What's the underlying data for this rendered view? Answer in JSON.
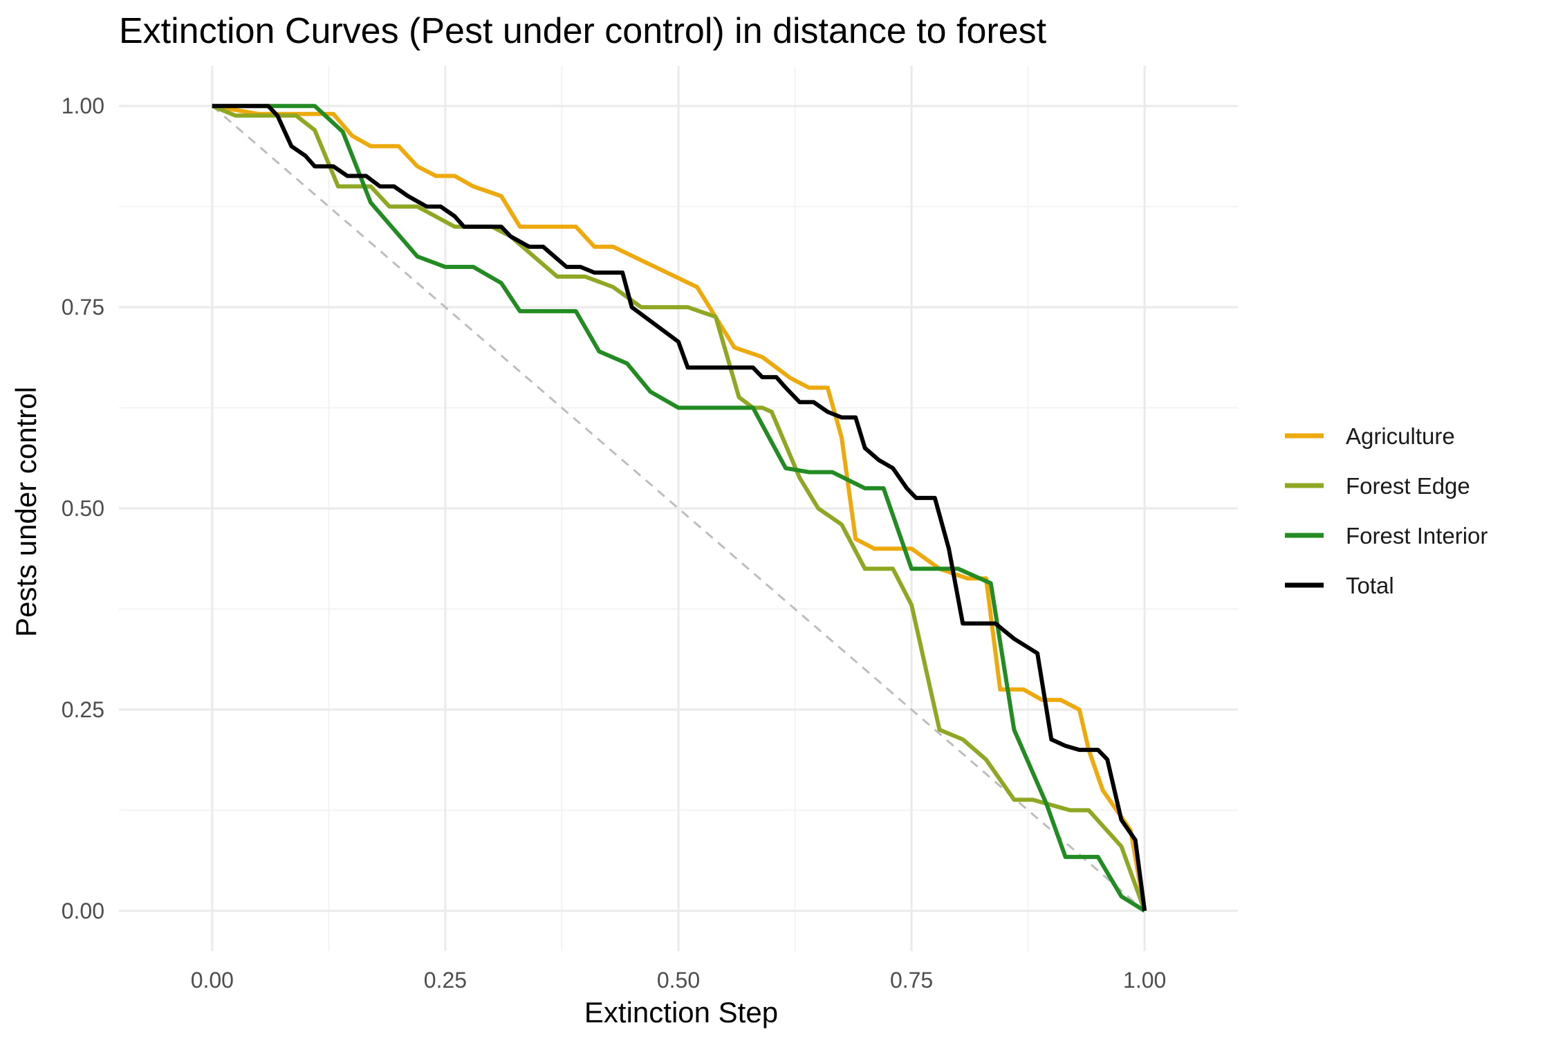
{
  "chart_data": {
    "type": "line",
    "title": "Extinction Curves (Pest under control) in distance to forest",
    "xlabel": "Extinction Step",
    "ylabel": "Pests under control",
    "xlim": [
      -0.1,
      1.1
    ],
    "ylim": [
      -0.05,
      1.05
    ],
    "x_ticks": [
      0,
      0.25,
      0.5,
      0.75,
      1
    ],
    "x_tick_labels": [
      "0.00",
      "0.25",
      "0.50",
      "0.75",
      "1.00"
    ],
    "y_ticks": [
      0,
      0.25,
      0.5,
      0.75,
      1
    ],
    "y_tick_labels": [
      "0.00",
      "0.25",
      "0.50",
      "0.75",
      "1.00"
    ],
    "grid": true,
    "legend_position": "right",
    "reference_line": {
      "x": [
        0,
        1
      ],
      "y": [
        1,
        0
      ],
      "style": "dashed",
      "color": "#bdbdbd"
    },
    "series": [
      {
        "name": "Agriculture",
        "color": "#EEA90C",
        "x": [
          0,
          0.05,
          0.13,
          0.15,
          0.17,
          0.2,
          0.22,
          0.24,
          0.26,
          0.28,
          0.31,
          0.33,
          0.39,
          0.41,
          0.43,
          0.52,
          0.56,
          0.59,
          0.62,
          0.64,
          0.66,
          0.675,
          0.69,
          0.71,
          0.75,
          0.78,
          0.81,
          0.83,
          0.845,
          0.87,
          0.89,
          0.91,
          0.93,
          0.94,
          0.955,
          0.97,
          0.985,
          1
        ],
        "y": [
          1,
          0.99,
          0.99,
          0.963,
          0.95,
          0.95,
          0.925,
          0.913,
          0.913,
          0.9,
          0.888,
          0.85,
          0.85,
          0.825,
          0.825,
          0.775,
          0.7,
          0.688,
          0.662,
          0.65,
          0.65,
          0.588,
          0.462,
          0.45,
          0.45,
          0.425,
          0.413,
          0.413,
          0.275,
          0.275,
          0.262,
          0.262,
          0.25,
          0.2,
          0.15,
          0.125,
          0.1,
          0
        ]
      },
      {
        "name": "Forest Edge",
        "color": "#8FA823",
        "x": [
          0,
          0.025,
          0.09,
          0.11,
          0.135,
          0.17,
          0.19,
          0.22,
          0.26,
          0.3,
          0.32,
          0.37,
          0.4,
          0.43,
          0.46,
          0.51,
          0.54,
          0.565,
          0.58,
          0.59,
          0.6,
          0.63,
          0.65,
          0.675,
          0.7,
          0.73,
          0.75,
          0.78,
          0.805,
          0.83,
          0.86,
          0.88,
          0.92,
          0.94,
          0.975,
          1
        ],
        "y": [
          1,
          0.988,
          0.988,
          0.97,
          0.9,
          0.9,
          0.875,
          0.875,
          0.85,
          0.85,
          0.838,
          0.788,
          0.788,
          0.775,
          0.75,
          0.75,
          0.738,
          0.638,
          0.625,
          0.625,
          0.62,
          0.538,
          0.5,
          0.48,
          0.425,
          0.425,
          0.38,
          0.225,
          0.213,
          0.188,
          0.138,
          0.138,
          0.125,
          0.125,
          0.08,
          0
        ]
      },
      {
        "name": "Forest Interior",
        "color": "#228B22",
        "x": [
          0,
          0.11,
          0.14,
          0.17,
          0.22,
          0.25,
          0.28,
          0.31,
          0.33,
          0.39,
          0.415,
          0.445,
          0.47,
          0.5,
          0.58,
          0.615,
          0.64,
          0.665,
          0.7,
          0.72,
          0.75,
          0.8,
          0.835,
          0.86,
          0.895,
          0.915,
          0.95,
          0.975,
          1
        ],
        "y": [
          1,
          1,
          0.968,
          0.88,
          0.813,
          0.8,
          0.8,
          0.78,
          0.745,
          0.745,
          0.695,
          0.68,
          0.645,
          0.625,
          0.625,
          0.55,
          0.545,
          0.545,
          0.525,
          0.525,
          0.425,
          0.425,
          0.407,
          0.225,
          0.132,
          0.067,
          0.067,
          0.018,
          0
        ]
      },
      {
        "name": "Total",
        "color": "#000000",
        "x": [
          0,
          0.06,
          0.07,
          0.085,
          0.1,
          0.11,
          0.13,
          0.145,
          0.165,
          0.18,
          0.195,
          0.21,
          0.23,
          0.245,
          0.26,
          0.27,
          0.31,
          0.32,
          0.34,
          0.355,
          0.38,
          0.395,
          0.41,
          0.44,
          0.45,
          0.5,
          0.51,
          0.58,
          0.59,
          0.605,
          0.615,
          0.63,
          0.645,
          0.66,
          0.675,
          0.69,
          0.7,
          0.715,
          0.73,
          0.745,
          0.755,
          0.775,
          0.79,
          0.805,
          0.84,
          0.86,
          0.885,
          0.9,
          0.915,
          0.93,
          0.95,
          0.96,
          0.975,
          0.99,
          1
        ],
        "y": [
          1,
          1,
          0.988,
          0.95,
          0.938,
          0.925,
          0.925,
          0.913,
          0.913,
          0.9,
          0.9,
          0.888,
          0.875,
          0.875,
          0.863,
          0.85,
          0.85,
          0.838,
          0.825,
          0.825,
          0.8,
          0.8,
          0.793,
          0.793,
          0.75,
          0.707,
          0.675,
          0.675,
          0.663,
          0.663,
          0.65,
          0.632,
          0.632,
          0.62,
          0.613,
          0.613,
          0.575,
          0.56,
          0.55,
          0.525,
          0.513,
          0.513,
          0.45,
          0.357,
          0.357,
          0.338,
          0.32,
          0.213,
          0.205,
          0.2,
          0.2,
          0.188,
          0.113,
          0.088,
          0
        ]
      }
    ]
  }
}
